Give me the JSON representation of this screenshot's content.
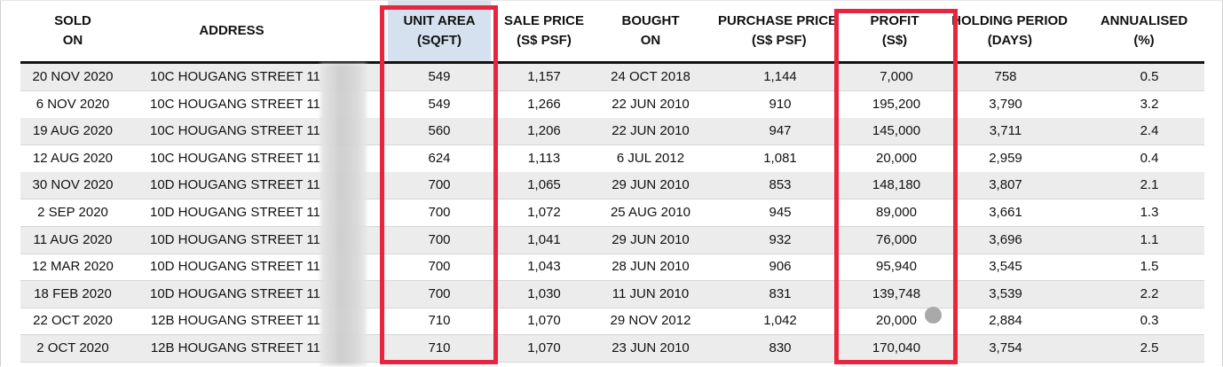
{
  "colors": {
    "highlight_header_bg": "#d5e1ee",
    "row_stripe_bg": "#ececec",
    "annotation_red": "#e8253f",
    "cursor_dot": "#a9a9a9"
  },
  "headers": [
    {
      "line1": "SOLD",
      "line2": "ON"
    },
    {
      "line1": "ADDRESS",
      "line2": ""
    },
    {
      "line1": "UNIT AREA",
      "line2": "(SQFT)"
    },
    {
      "line1": "SALE PRICE",
      "line2": "(S$ PSF)"
    },
    {
      "line1": "BOUGHT",
      "line2": "ON"
    },
    {
      "line1": "PURCHASE PRICE",
      "line2": "(S$ PSF)"
    },
    {
      "line1": "PROFIT",
      "line2": "(S$)"
    },
    {
      "line1": "HOLDING PERIOD",
      "line2": "(DAYS)"
    },
    {
      "line1": "ANNUALISED",
      "line2": "(%)"
    }
  ],
  "rows": [
    [
      "20 NOV 2020",
      "10C HOUGANG STREET 11",
      "549",
      "1,157",
      "24 OCT 2018",
      "1,144",
      "7,000",
      "758",
      "0.5"
    ],
    [
      "6 NOV 2020",
      "10C HOUGANG STREET 11",
      "549",
      "1,266",
      "22 JUN 2010",
      "910",
      "195,200",
      "3,790",
      "3.2"
    ],
    [
      "19 AUG 2020",
      "10C HOUGANG STREET 11",
      "560",
      "1,206",
      "22 JUN 2010",
      "947",
      "145,000",
      "3,711",
      "2.4"
    ],
    [
      "12 AUG 2020",
      "10C HOUGANG STREET 11",
      "624",
      "1,113",
      "6 JUL 2012",
      "1,081",
      "20,000",
      "2,959",
      "0.4"
    ],
    [
      "30 NOV 2020",
      "10D HOUGANG STREET 11",
      "700",
      "1,065",
      "29 JUN 2010",
      "853",
      "148,180",
      "3,807",
      "2.1"
    ],
    [
      "2 SEP 2020",
      "10D HOUGANG STREET 11",
      "700",
      "1,072",
      "25 AUG 2010",
      "945",
      "89,000",
      "3,661",
      "1.3"
    ],
    [
      "11 AUG 2020",
      "10D HOUGANG STREET 11",
      "700",
      "1,041",
      "29 JUN 2010",
      "932",
      "76,000",
      "3,696",
      "1.1"
    ],
    [
      "12 MAR 2020",
      "10D HOUGANG STREET 11",
      "700",
      "1,043",
      "28 JUN 2010",
      "906",
      "95,940",
      "3,545",
      "1.5"
    ],
    [
      "18 FEB 2020",
      "10D HOUGANG STREET 11",
      "700",
      "1,030",
      "11 JUN 2010",
      "831",
      "139,748",
      "3,539",
      "2.2"
    ],
    [
      "22 OCT 2020",
      "12B HOUGANG STREET 11",
      "710",
      "1,070",
      "29 NOV 2012",
      "1,042",
      "20,000",
      "2,884",
      "0.3"
    ],
    [
      "2 OCT 2020",
      "12B HOUGANG STREET 11",
      "710",
      "1,070",
      "23 JUN 2010",
      "830",
      "170,040",
      "3,754",
      "2.5"
    ]
  ]
}
